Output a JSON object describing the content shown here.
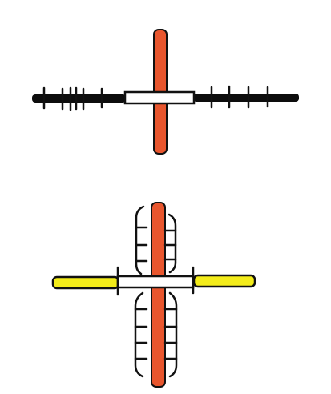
{
  "colors": {
    "background": "#ffffff",
    "outline": "#111111",
    "black_bar": "#0d0d0d",
    "red_bar": "#e8562e",
    "yellow_bar": "#f3ec1a",
    "white_segment": "#ffffff"
  },
  "diagrams": [
    {
      "name": "upper-cross",
      "horizontal_bar_color": "black",
      "vertical_bar_color": "red",
      "left_tick_count": 6,
      "right_tick_count": 4,
      "center_segment": "white"
    },
    {
      "name": "lower-cross",
      "horizontal_bar_color": "yellow",
      "vertical_bar_color": "red",
      "upper_bracket_ticks_per_side": 3,
      "lower_bracket_ticks_per_side": 4,
      "center_segment": "white"
    }
  ]
}
